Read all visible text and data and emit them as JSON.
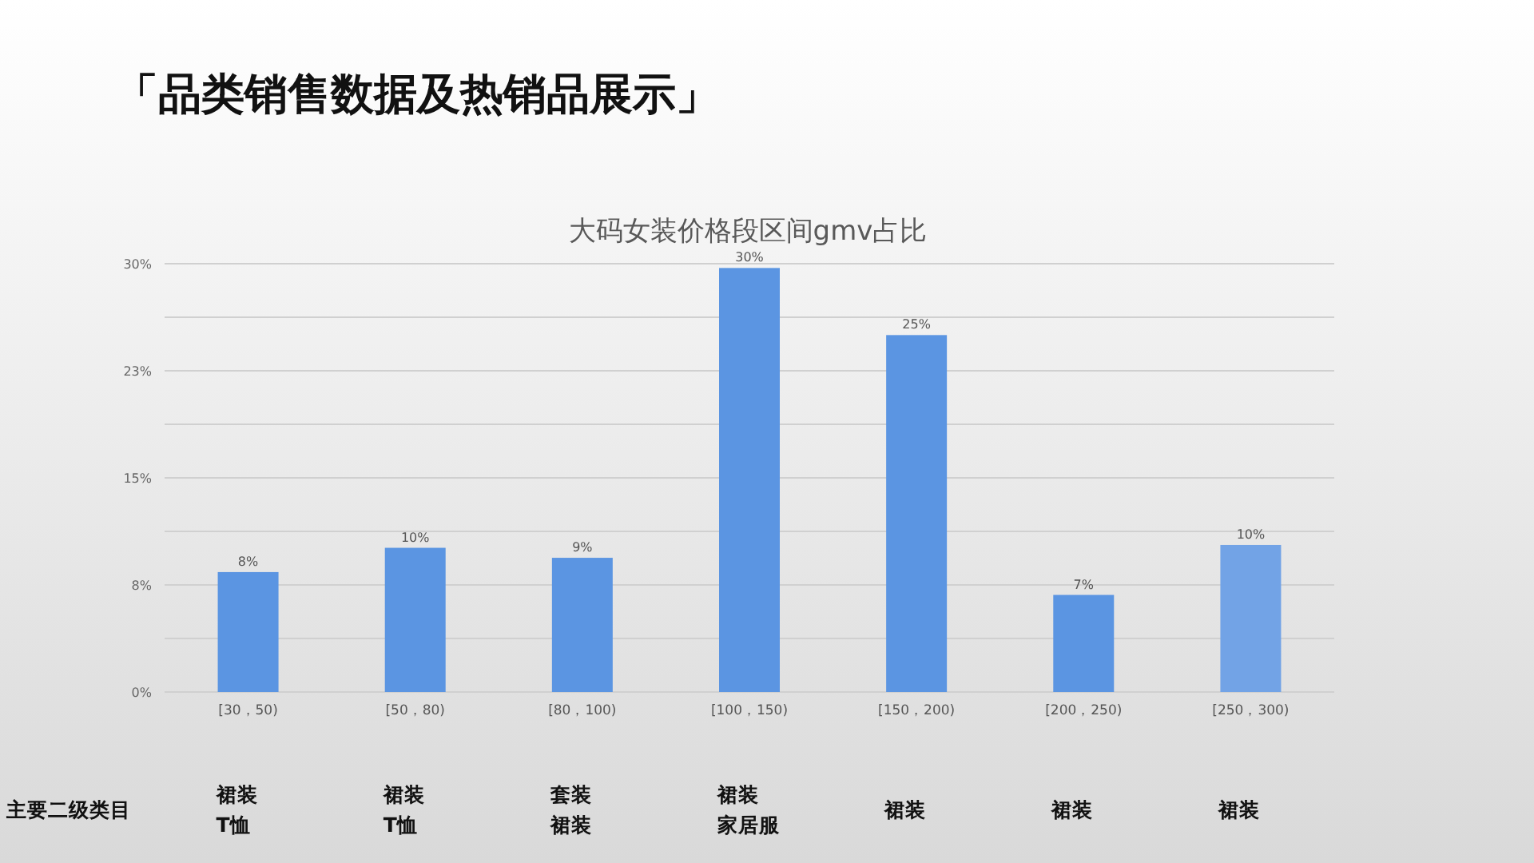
{
  "chart_data": {
    "type": "bar",
    "title": "「品类销售数据及热销品展示」",
    "subtitle": "大码女装价格段区间gmv占比",
    "categories": [
      "[30，50)",
      "[50，80)",
      "[80，100)",
      "[100，150)",
      "[150，200)",
      "[200，250)",
      "[250，300)"
    ],
    "values": [
      8.4,
      10.1,
      9.4,
      29.7,
      25.0,
      6.8,
      10.3
    ],
    "value_labels": [
      "8%",
      "10%",
      "9%",
      "30%",
      "25%",
      "7%",
      "10%"
    ],
    "colors": [
      "#5b95e2",
      "#5b95e2",
      "#5b95e2",
      "#5b95e2",
      "#5b95e2",
      "#5b95e2",
      "#72a3e6"
    ],
    "ylim": [
      0,
      30
    ],
    "yticks": [
      {
        "value": 0,
        "label": "0%"
      },
      {
        "value": 3.75,
        "label": null
      },
      {
        "value": 7.5,
        "label": "8%"
      },
      {
        "value": 11.25,
        "label": null
      },
      {
        "value": 15,
        "label": "15%"
      },
      {
        "value": 18.75,
        "label": null
      },
      {
        "value": 22.5,
        "label": "23%"
      },
      {
        "value": 26.25,
        "label": null
      },
      {
        "value": 30,
        "label": "30%"
      }
    ],
    "grid": "y",
    "annotations": [
      "主要二级类目",
      "裙装",
      "T恤",
      "裙装",
      "T恤",
      "套装",
      "裙装",
      "裙装",
      "家居服",
      "裙装",
      "裙装",
      "裙装"
    ]
  }
}
